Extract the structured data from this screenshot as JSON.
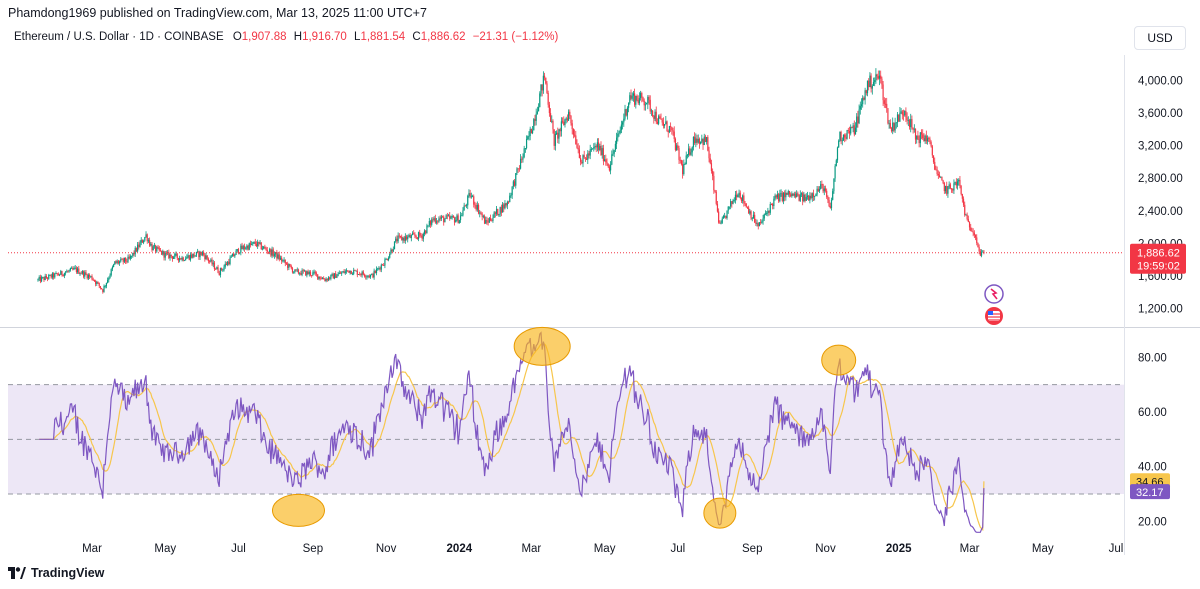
{
  "header": {
    "published": "Phamdong1969 published on TradingView.com, Mar 13, 2025 11:00 UTC+7",
    "symbol": "Ethereum / U.S. Dollar · 1D · COINBASE",
    "o_label": "O",
    "o_value": "1,907.88",
    "h_label": "H",
    "h_value": "1,916.70",
    "l_label": "L",
    "l_value": "1,881.54",
    "c_label": "C",
    "c_value": "1,886.62",
    "change": "−21.31 (−1.12%)",
    "currency": "USD"
  },
  "footer": {
    "brand": "TradingView"
  },
  "colors": {
    "up": "#089981",
    "down": "#f23645",
    "rsi": "#7e57c2",
    "rsi_ma": "#f7c64c",
    "rsi_band": "#ede7f6",
    "highlight": "#f9b51a"
  },
  "chart_data": [
    {
      "type": "candlestick",
      "name": "Ethereum / U.S. Dollar",
      "x_ticks": [
        "Mar",
        "May",
        "Jul",
        "Sep",
        "Nov",
        "2024",
        "Mar",
        "May",
        "Jul",
        "Sep",
        "Nov",
        "2025",
        "Mar",
        "May",
        "Jul"
      ],
      "y_ticks": [
        "4,000.00",
        "3,600.00",
        "3,200.00",
        "2,800.00",
        "2,400.00",
        "2,000.00",
        "1,600.00",
        "1,200.00"
      ],
      "ylim": [
        1000,
        4250
      ],
      "last_price": "1,886.62",
      "countdown": "19:59:02",
      "series_close": [
        [
          "2023-01-15",
          1550
        ],
        [
          "2023-02-01",
          1620
        ],
        [
          "2023-02-15",
          1680
        ],
        [
          "2023-03-01",
          1580
        ],
        [
          "2023-03-10",
          1430
        ],
        [
          "2023-03-20",
          1760
        ],
        [
          "2023-04-01",
          1800
        ],
        [
          "2023-04-15",
          2100
        ],
        [
          "2023-04-20",
          1950
        ],
        [
          "2023-05-01",
          1860
        ],
        [
          "2023-05-15",
          1820
        ],
        [
          "2023-06-01",
          1880
        ],
        [
          "2023-06-15",
          1650
        ],
        [
          "2023-07-01",
          1920
        ],
        [
          "2023-07-15",
          2000
        ],
        [
          "2023-08-01",
          1860
        ],
        [
          "2023-08-17",
          1650
        ],
        [
          "2023-09-01",
          1630
        ],
        [
          "2023-09-11",
          1560
        ],
        [
          "2023-10-01",
          1670
        ],
        [
          "2023-10-20",
          1600
        ],
        [
          "2023-11-01",
          1800
        ],
        [
          "2023-11-10",
          2050
        ],
        [
          "2023-12-01",
          2100
        ],
        [
          "2023-12-10",
          2300
        ],
        [
          "2024-01-01",
          2300
        ],
        [
          "2024-01-10",
          2600
        ],
        [
          "2024-01-23",
          2250
        ],
        [
          "2024-02-10",
          2500
        ],
        [
          "2024-02-20",
          2950
        ],
        [
          "2024-03-01",
          3400
        ],
        [
          "2024-03-12",
          4050
        ],
        [
          "2024-03-20",
          3250
        ],
        [
          "2024-04-01",
          3600
        ],
        [
          "2024-04-12",
          3000
        ],
        [
          "2024-04-25",
          3200
        ],
        [
          "2024-05-05",
          2950
        ],
        [
          "2024-05-22",
          3800
        ],
        [
          "2024-06-05",
          3750
        ],
        [
          "2024-06-15",
          3500
        ],
        [
          "2024-06-25",
          3400
        ],
        [
          "2024-07-05",
          2900
        ],
        [
          "2024-07-15",
          3300
        ],
        [
          "2024-07-25",
          3250
        ],
        [
          "2024-08-05",
          2200
        ],
        [
          "2024-08-20",
          2650
        ],
        [
          "2024-09-06",
          2200
        ],
        [
          "2024-09-20",
          2550
        ],
        [
          "2024-10-01",
          2600
        ],
        [
          "2024-10-15",
          2550
        ],
        [
          "2024-10-30",
          2700
        ],
        [
          "2024-11-05",
          2400
        ],
        [
          "2024-11-12",
          3300
        ],
        [
          "2024-11-25",
          3400
        ],
        [
          "2024-12-06",
          3950
        ],
        [
          "2024-12-16",
          4050
        ],
        [
          "2024-12-25",
          3400
        ],
        [
          "2025-01-06",
          3650
        ],
        [
          "2025-01-15",
          3300
        ],
        [
          "2025-01-25",
          3300
        ],
        [
          "2025-02-03",
          2800
        ],
        [
          "2025-02-10",
          2650
        ],
        [
          "2025-02-20",
          2750
        ],
        [
          "2025-02-27",
          2250
        ],
        [
          "2025-03-05",
          2150
        ],
        [
          "2025-03-10",
          1850
        ],
        [
          "2025-03-13",
          1886.62
        ]
      ]
    },
    {
      "type": "line",
      "name": "RSI",
      "y_ticks": [
        "80.00",
        "60.00",
        "40.00",
        "20.00"
      ],
      "ylim": [
        15,
        90
      ],
      "band": [
        30,
        70
      ],
      "midline": 50,
      "last_rsi": "32.17",
      "last_rsi_ma": "34.66",
      "highlighted_points": [
        [
          "2023-08-20",
          24
        ],
        [
          "2024-03-10",
          84
        ],
        [
          "2024-08-05",
          23
        ],
        [
          "2024-11-12",
          79
        ]
      ]
    }
  ]
}
